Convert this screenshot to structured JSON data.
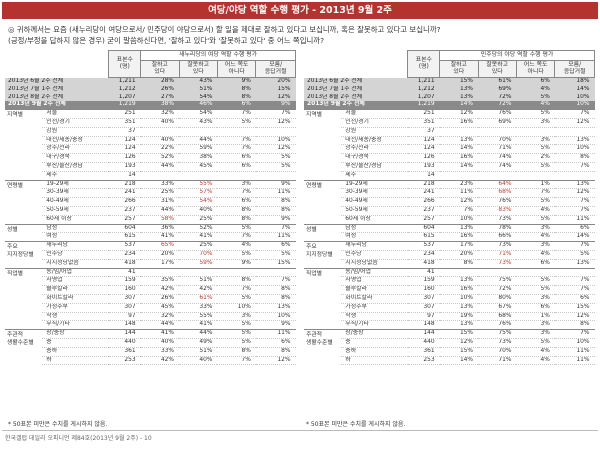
{
  "title": "여당/야당 역할 수행 평가 - 2013년 9월 2주",
  "question_line1": "◎  귀하께서는 요즘 (새누리당이 여당으로서/ 민주당이 야당으로서) 할 일을 제대로 잘하고 있다고 보십니까, 혹은 잘못하고 있다고 보십니까?",
  "question_line2": "(긍정/부정을 답하지 않은 경우) 굳이 말씀하신다면, '잘하고 있다'와 '잘못하고 있다' 중 어느 쪽입니까?",
  "headers": {
    "n": "표본수\n(명)",
    "good": "잘하고\n있다",
    "bad": "잘못하고\n있다",
    "neither": "어느 쪽도\n아니다",
    "dk": "모름/\n응답거절"
  },
  "panels": [
    {
      "group_title": "새누리당의 여당 역할 수행 평가",
      "history": [
        {
          "label": "2013년 6월 2주 전체",
          "n": "1,211",
          "v": [
            "28%",
            "43%",
            "9%",
            "20%"
          ]
        },
        {
          "label": "2013년 7월 1주 전체",
          "n": "1,212",
          "v": [
            "26%",
            "51%",
            "8%",
            "15%"
          ]
        },
        {
          "label": "2013년 8월 2주 전체",
          "n": "1,207",
          "v": [
            "27%",
            "54%",
            "8%",
            "12%"
          ]
        },
        {
          "label": "2013년 9월 2주 전체",
          "n": "1,219",
          "v": [
            "38%",
            "46%",
            "6%",
            "9%"
          ]
        }
      ],
      "categories": [
        {
          "name": "지역별",
          "rows": [
            {
              "sub": "서울",
              "n": "251",
              "v": [
                "32%",
                "54%",
                "7%",
                "7%"
              ]
            },
            {
              "sub": "인천/경기",
              "n": "351",
              "v": [
                "40%",
                "43%",
                "5%",
                "12%"
              ]
            },
            {
              "sub": "강원",
              "n": "37",
              "v": [
                "",
                "",
                "",
                ""
              ]
            },
            {
              "sub": "대전/세종/충청",
              "n": "124",
              "v": [
                "40%",
                "44%",
                "7%",
                "10%"
              ]
            },
            {
              "sub": "광주/전라",
              "n": "124",
              "v": [
                "22%",
                "59%",
                "7%",
                "12%"
              ]
            },
            {
              "sub": "대구/경북",
              "n": "126",
              "v": [
                "52%",
                "38%",
                "6%",
                "5%"
              ]
            },
            {
              "sub": "부산/울산/경남",
              "n": "193",
              "v": [
                "44%",
                "45%",
                "6%",
                "5%"
              ]
            },
            {
              "sub": "제주",
              "n": "14",
              "v": [
                "",
                "",
                "",
                ""
              ]
            }
          ]
        },
        {
          "name": "연령별",
          "rows": [
            {
              "sub": "19-29세",
              "n": "218",
              "v": [
                "33%",
                "55%",
                "3%",
                "9%"
              ]
            },
            {
              "sub": "30-39세",
              "n": "241",
              "v": [
                "25%",
                "57%",
                "7%",
                "11%"
              ]
            },
            {
              "sub": "40-49세",
              "n": "266",
              "v": [
                "31%",
                "54%",
                "6%",
                "8%"
              ]
            },
            {
              "sub": "50-59세",
              "n": "237",
              "v": [
                "44%",
                "40%",
                "8%",
                "8%"
              ]
            },
            {
              "sub": "60세 이상",
              "n": "257",
              "v": [
                "58%",
                "25%",
                "8%",
                "9%"
              ]
            }
          ]
        },
        {
          "name": "성별",
          "rows": [
            {
              "sub": "남성",
              "n": "604",
              "v": [
                "36%",
                "52%",
                "5%",
                "7%"
              ]
            },
            {
              "sub": "여성",
              "n": "615",
              "v": [
                "41%",
                "41%",
                "7%",
                "11%"
              ]
            }
          ]
        },
        {
          "name": "주요\n지지정당별",
          "rows": [
            {
              "sub": "새누리당",
              "n": "537",
              "v": [
                "65%",
                "25%",
                "4%",
                "6%"
              ]
            },
            {
              "sub": "민주당",
              "n": "234",
              "v": [
                "20%",
                "70%",
                "5%",
                "5%"
              ]
            },
            {
              "sub": "지지정당없음",
              "n": "418",
              "v": [
                "17%",
                "59%",
                "9%",
                "15%"
              ]
            }
          ]
        },
        {
          "name": "직업별",
          "rows": [
            {
              "sub": "농/임/어업",
              "n": "41",
              "v": [
                "",
                "",
                "",
                ""
              ]
            },
            {
              "sub": "자영업",
              "n": "159",
              "v": [
                "35%",
                "51%",
                "8%",
                "7%"
              ]
            },
            {
              "sub": "블루칼라",
              "n": "160",
              "v": [
                "42%",
                "42%",
                "7%",
                "8%"
              ]
            },
            {
              "sub": "화이트칼라",
              "n": "307",
              "v": [
                "26%",
                "61%",
                "5%",
                "8%"
              ]
            },
            {
              "sub": "가정주부",
              "n": "307",
              "v": [
                "45%",
                "33%",
                "10%",
                "13%"
              ]
            },
            {
              "sub": "학생",
              "n": "97",
              "v": [
                "32%",
                "55%",
                "3%",
                "10%"
              ]
            },
            {
              "sub": "무직/기타",
              "n": "148",
              "v": [
                "44%",
                "41%",
                "5%",
                "9%"
              ]
            }
          ]
        },
        {
          "name": "주관적\n생활수준별",
          "rows": [
            {
              "sub": "상/중상",
              "n": "144",
              "v": [
                "41%",
                "44%",
                "5%",
                "11%"
              ]
            },
            {
              "sub": "중",
              "n": "440",
              "v": [
                "40%",
                "49%",
                "5%",
                "6%"
              ]
            },
            {
              "sub": "중하",
              "n": "361",
              "v": [
                "33%",
                "51%",
                "8%",
                "8%"
              ]
            },
            {
              "sub": "하",
              "n": "253",
              "v": [
                "42%",
                "40%",
                "7%",
                "12%"
              ]
            }
          ]
        }
      ],
      "highlights": [
        [
          1,
          0,
          1
        ],
        [
          1,
          1,
          1
        ],
        [
          1,
          2,
          1
        ],
        [
          1,
          4,
          0
        ],
        [
          3,
          0,
          0
        ],
        [
          3,
          1,
          1
        ],
        [
          3,
          2,
          1
        ],
        [
          4,
          3,
          1
        ]
      ],
      "note": "* 50표본 미만은 수치를 게시하지 않음."
    },
    {
      "group_title": "민주당의 야당 역할 수행 평가",
      "history": [
        {
          "label": "2013년 6월 2주 전체",
          "n": "1,211",
          "v": [
            "15%",
            "61%",
            "6%",
            "18%"
          ]
        },
        {
          "label": "2013년 7월 1주 전체",
          "n": "1,212",
          "v": [
            "13%",
            "69%",
            "4%",
            "14%"
          ]
        },
        {
          "label": "2013년 8월 2주 전체",
          "n": "1,207",
          "v": [
            "13%",
            "72%",
            "5%",
            "10%"
          ]
        },
        {
          "label": "2013년 9월 2주 전체",
          "n": "1,219",
          "v": [
            "14%",
            "72%",
            "4%",
            "10%"
          ]
        }
      ],
      "categories": [
        {
          "name": "지역별",
          "rows": [
            {
              "sub": "서울",
              "n": "251",
              "v": [
                "12%",
                "76%",
                "5%",
                "7%"
              ]
            },
            {
              "sub": "인천/경기",
              "n": "351",
              "v": [
                "16%",
                "69%",
                "3%",
                "12%"
              ]
            },
            {
              "sub": "강원",
              "n": "37",
              "v": [
                "",
                "",
                "",
                ""
              ]
            },
            {
              "sub": "대전/세종/충청",
              "n": "124",
              "v": [
                "13%",
                "70%",
                "3%",
                "13%"
              ]
            },
            {
              "sub": "광주/전라",
              "n": "124",
              "v": [
                "14%",
                "71%",
                "5%",
                "10%"
              ]
            },
            {
              "sub": "대구/경북",
              "n": "126",
              "v": [
                "16%",
                "74%",
                "2%",
                "8%"
              ]
            },
            {
              "sub": "부산/울산/경남",
              "n": "193",
              "v": [
                "14%",
                "74%",
                "5%",
                "7%"
              ]
            },
            {
              "sub": "제주",
              "n": "14",
              "v": [
                "",
                "",
                "",
                ""
              ]
            }
          ]
        },
        {
          "name": "연령별",
          "rows": [
            {
              "sub": "19-29세",
              "n": "218",
              "v": [
                "23%",
                "64%",
                "1%",
                "13%"
              ]
            },
            {
              "sub": "30-39세",
              "n": "241",
              "v": [
                "11%",
                "68%",
                "7%",
                "12%"
              ]
            },
            {
              "sub": "40-49세",
              "n": "266",
              "v": [
                "12%",
                "76%",
                "5%",
                "7%"
              ]
            },
            {
              "sub": "50-59세",
              "n": "237",
              "v": [
                "7%",
                "83%",
                "4%",
                "7%"
              ]
            },
            {
              "sub": "60세 이상",
              "n": "257",
              "v": [
                "10%",
                "73%",
                "5%",
                "11%"
              ]
            }
          ]
        },
        {
          "name": "성별",
          "rows": [
            {
              "sub": "남성",
              "n": "604",
              "v": [
                "13%",
                "78%",
                "3%",
                "6%"
              ]
            },
            {
              "sub": "여성",
              "n": "615",
              "v": [
                "16%",
                "66%",
                "4%",
                "14%"
              ]
            }
          ]
        },
        {
          "name": "주요\n지지정당별",
          "rows": [
            {
              "sub": "새누리당",
              "n": "537",
              "v": [
                "17%",
                "73%",
                "3%",
                "7%"
              ]
            },
            {
              "sub": "민주당",
              "n": "234",
              "v": [
                "20%",
                "71%",
                "4%",
                "5%"
              ]
            },
            {
              "sub": "지지정당없음",
              "n": "418",
              "v": [
                "8%",
                "73%",
                "6%",
                "13%"
              ]
            }
          ]
        },
        {
          "name": "직업별",
          "rows": [
            {
              "sub": "농/임/어업",
              "n": "41",
              "v": [
                "",
                "",
                "",
                ""
              ]
            },
            {
              "sub": "자영업",
              "n": "159",
              "v": [
                "13%",
                "75%",
                "5%",
                "7%"
              ]
            },
            {
              "sub": "블루칼라",
              "n": "160",
              "v": [
                "16%",
                "72%",
                "5%",
                "7%"
              ]
            },
            {
              "sub": "화이트칼라",
              "n": "307",
              "v": [
                "10%",
                "80%",
                "3%",
                "6%"
              ]
            },
            {
              "sub": "가정주부",
              "n": "307",
              "v": [
                "13%",
                "67%",
                "6%",
                "15%"
              ]
            },
            {
              "sub": "학생",
              "n": "97",
              "v": [
                "19%",
                "68%",
                "1%",
                "12%"
              ]
            },
            {
              "sub": "무직/기타",
              "n": "148",
              "v": [
                "13%",
                "76%",
                "3%",
                "8%"
              ]
            }
          ]
        },
        {
          "name": "주관적\n생활수준별",
          "rows": [
            {
              "sub": "상/중상",
              "n": "144",
              "v": [
                "15%",
                "75%",
                "3%",
                "7%"
              ]
            },
            {
              "sub": "중",
              "n": "440",
              "v": [
                "12%",
                "73%",
                "5%",
                "10%"
              ]
            },
            {
              "sub": "중하",
              "n": "361",
              "v": [
                "15%",
                "70%",
                "4%",
                "11%"
              ]
            },
            {
              "sub": "하",
              "n": "253",
              "v": [
                "14%",
                "71%",
                "4%",
                "11%"
              ]
            }
          ]
        }
      ],
      "highlights": [
        [
          1,
          0,
          1
        ],
        [
          1,
          1,
          1
        ],
        [
          1,
          3,
          1
        ],
        [
          3,
          1,
          1
        ],
        [
          3,
          2,
          1
        ]
      ],
      "note": "* 50표본 미만은 수치를 게시하지 않음."
    }
  ],
  "footer": "한국갤럽 데일리 오피니언 제84호(2013년 9월 2주) - 10",
  "colors": {
    "title_bg": "#b5332e",
    "highlight": "#c0392b",
    "history_bg": "#d4d4d4",
    "latest_bg": "#8a8a8a"
  }
}
